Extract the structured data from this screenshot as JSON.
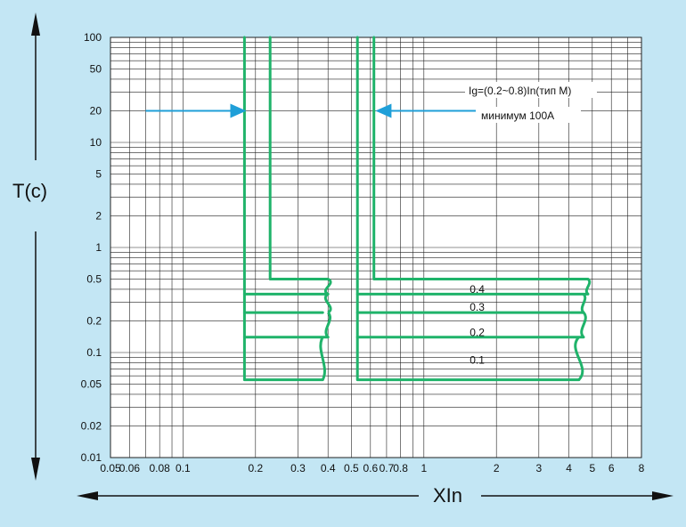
{
  "colors": {
    "background": "#c3e6f4",
    "plot_background": "#ffffff",
    "grid": "#222222",
    "curve": "#1fb36a",
    "arrow": "#1f9fd8",
    "axis_arrow": "#111111"
  },
  "chart_data": {
    "type": "line",
    "xlabel": "XIn",
    "ylabel": "T(c)",
    "x_scale": "log",
    "y_scale": "log",
    "xlim": [
      0.05,
      8
    ],
    "ylim": [
      0.01,
      100
    ],
    "grid": true,
    "x_ticks": [
      0.05,
      0.06,
      0.08,
      0.1,
      0.2,
      0.3,
      0.4,
      0.5,
      0.6,
      0.7,
      0.8,
      1,
      2,
      3,
      4,
      5,
      6,
      8
    ],
    "x_tick_labels": [
      "0.05",
      "0.06",
      "0.08",
      "0.1",
      "0.2",
      "0.3",
      "0.4",
      "0.5",
      "0.6",
      "0.7",
      "0.8",
      "1",
      "2",
      "3",
      "4",
      "5",
      "6",
      "8"
    ],
    "y_ticks": [
      100,
      50,
      20,
      10,
      5,
      2,
      1,
      0.5,
      0.2,
      0.1,
      0.05,
      0.02,
      0.01
    ],
    "y_tick_labels": [
      "100",
      "50",
      "20",
      "10",
      "5",
      "2",
      "1",
      "0.5",
      "0.2",
      "0.1",
      "0.05",
      "0.02",
      "0.01"
    ],
    "annotations": {
      "line1": "Ig=(0.2~0.8)In(тип M)",
      "line2": "минимум 100A"
    },
    "delay_labels": [
      "0.4",
      "0.3",
      "0.2",
      "0.1"
    ],
    "series": [
      {
        "values": [
          [
            0.18,
            100
          ],
          [
            0.18,
            0.055
          ],
          [
            0.38,
            0.055
          ]
        ]
      },
      {
        "values": [
          [
            0.23,
            100
          ],
          [
            0.23,
            0.5
          ],
          [
            0.4,
            0.5
          ]
        ]
      },
      {
        "values": [
          [
            0.53,
            100
          ],
          [
            0.53,
            0.055
          ],
          [
            4.4,
            0.055
          ]
        ]
      },
      {
        "values": [
          [
            0.62,
            100
          ],
          [
            0.62,
            0.5
          ],
          [
            4.8,
            0.5
          ]
        ]
      },
      {
        "values": [
          [
            0.18,
            0.36
          ],
          [
            0.4,
            0.36
          ]
        ]
      },
      {
        "values": [
          [
            0.18,
            0.24
          ],
          [
            0.38,
            0.24
          ]
        ]
      },
      {
        "values": [
          [
            0.18,
            0.14
          ],
          [
            0.4,
            0.14
          ]
        ]
      },
      {
        "values": [
          [
            0.53,
            0.36
          ],
          [
            4.8,
            0.36
          ]
        ]
      },
      {
        "values": [
          [
            0.53,
            0.24
          ],
          [
            4.6,
            0.24
          ]
        ]
      },
      {
        "values": [
          [
            0.53,
            0.14
          ],
          [
            4.6,
            0.14
          ]
        ]
      }
    ],
    "arrows": [
      {
        "from": [
          0.07,
          20
        ],
        "to": [
          0.18,
          20
        ]
      },
      {
        "from": [
          1.7,
          20
        ],
        "to": [
          0.64,
          20
        ]
      }
    ]
  }
}
